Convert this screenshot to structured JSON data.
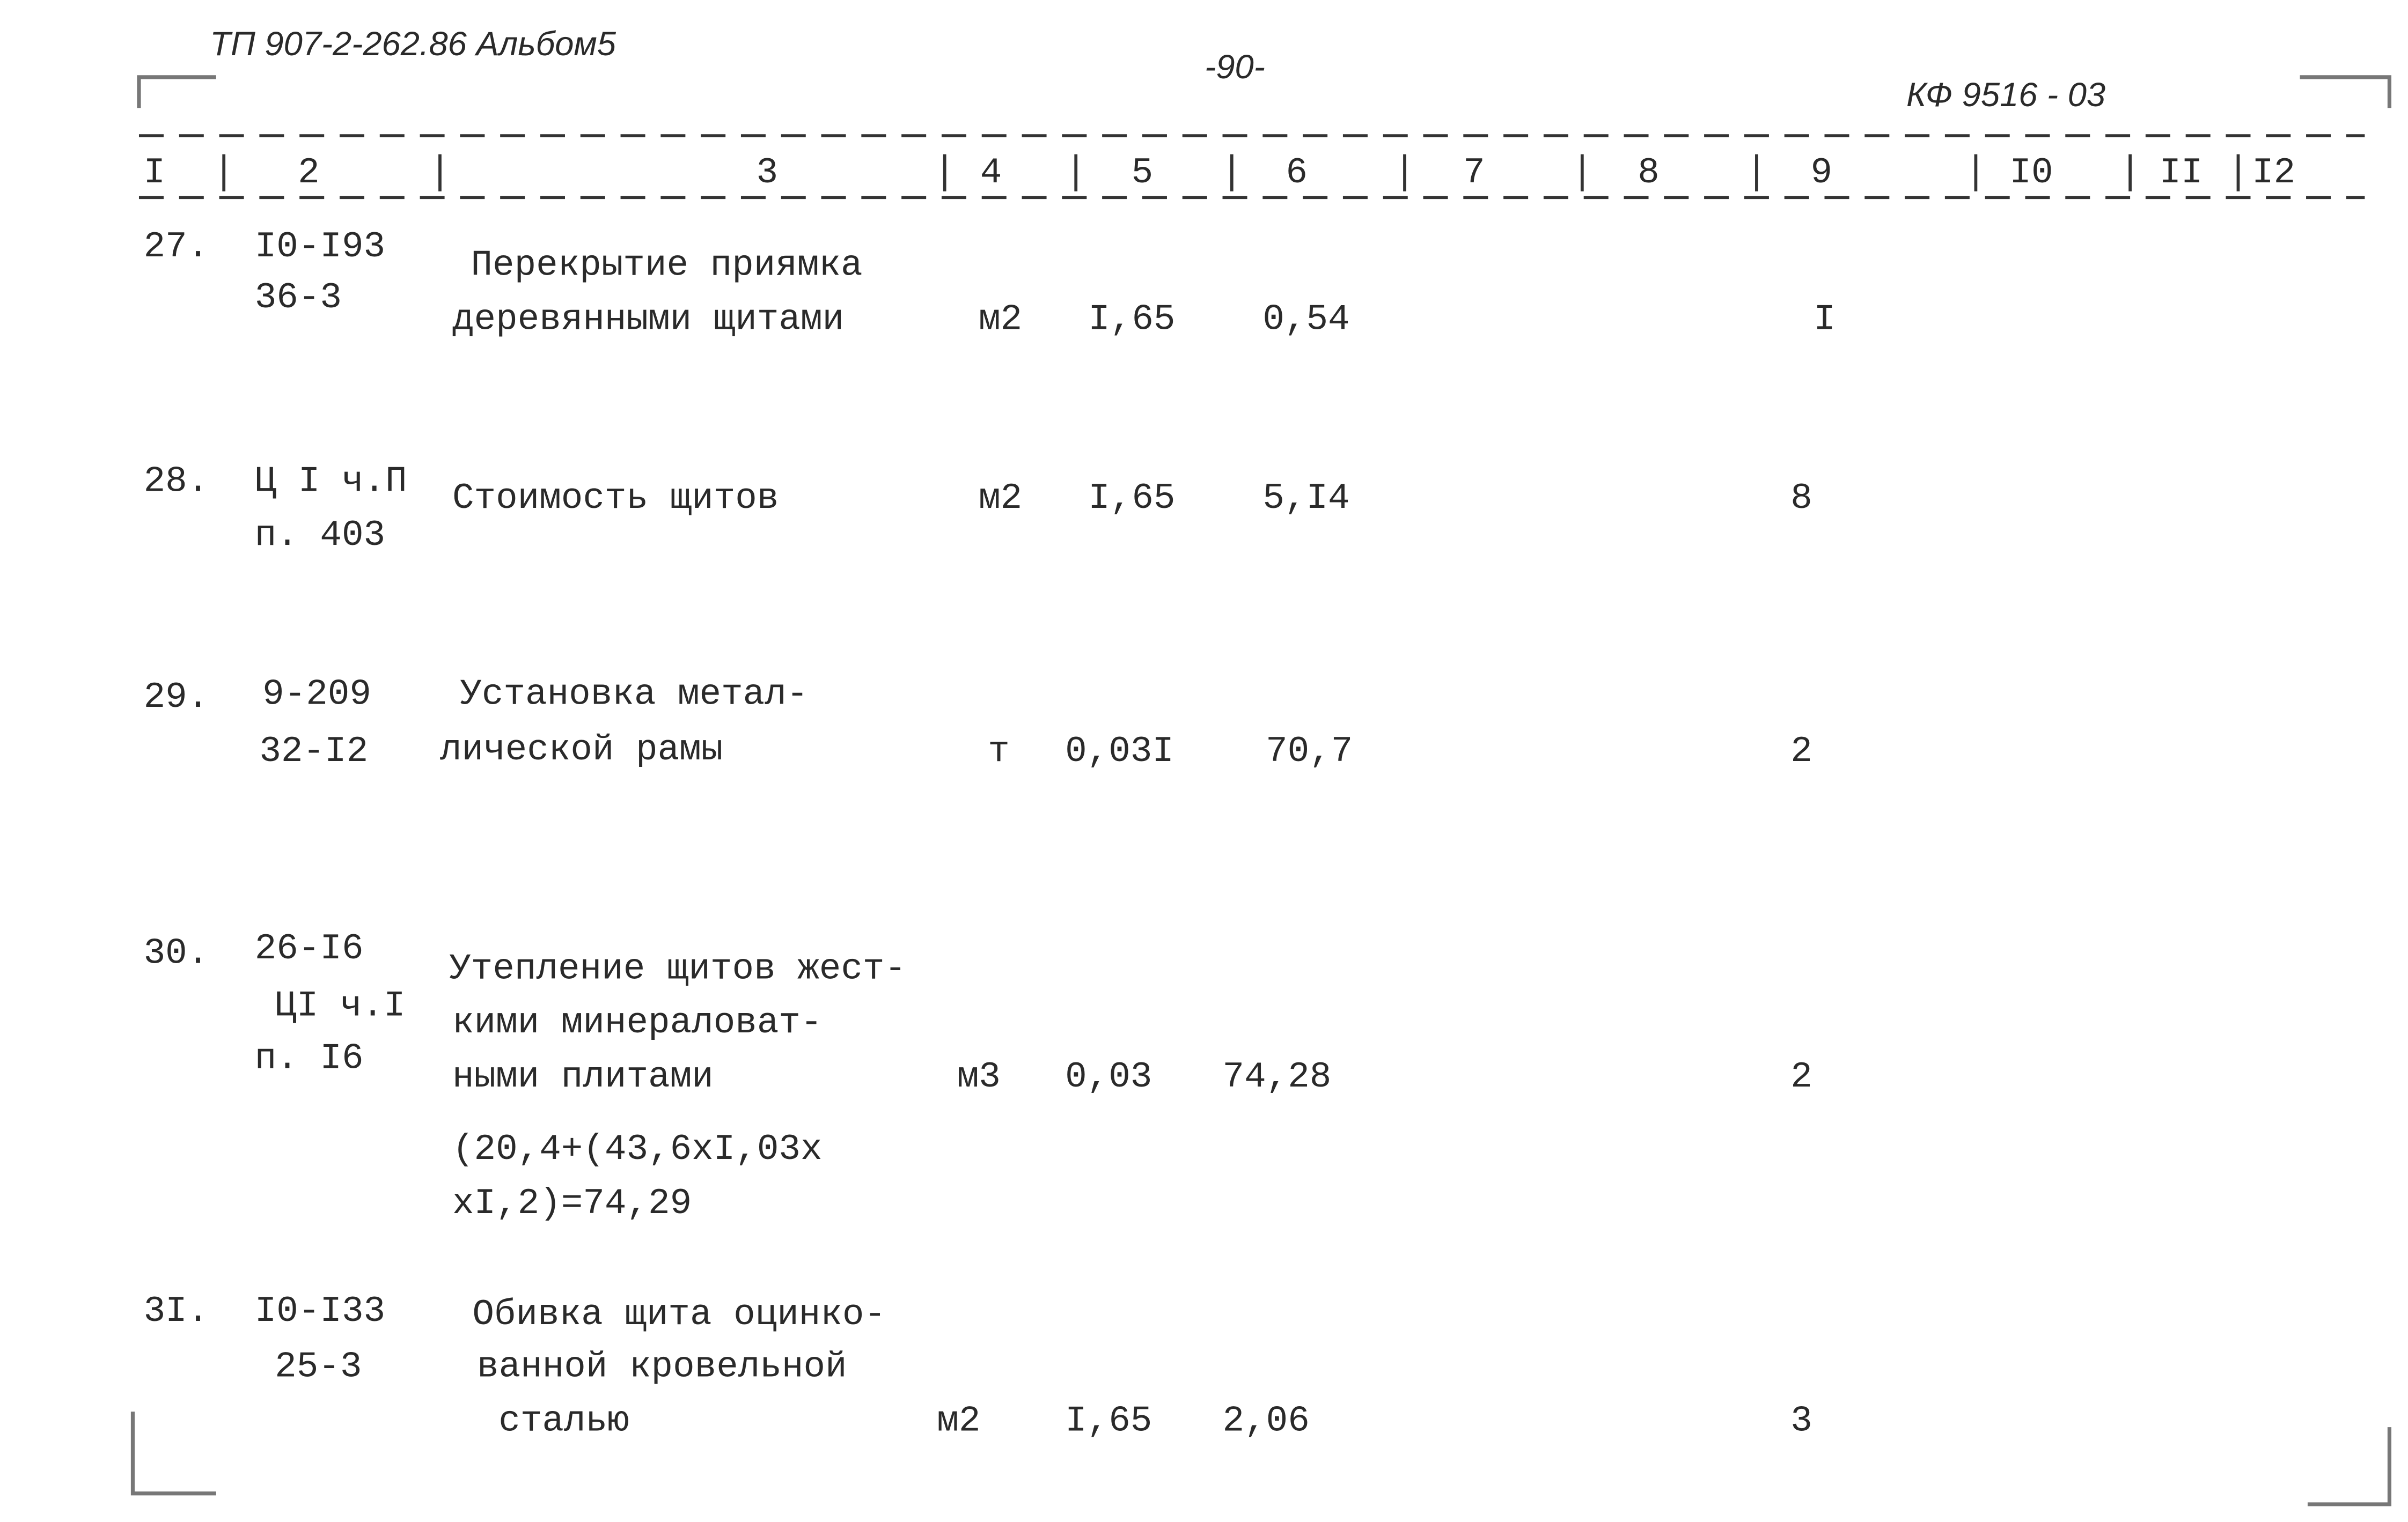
{
  "header": {
    "document_code": "ТП 907-2-262.86 Альбом5",
    "page_number": "-90-",
    "stamp": "КФ 9516 - 03"
  },
  "table": {
    "columns": [
      "I",
      "2",
      "3",
      "4",
      "5",
      "6",
      "7",
      "8",
      "9",
      "I0",
      "II",
      "I2"
    ],
    "rows": [
      {
        "number": "27.",
        "code": [
          "I0-I93",
          "36-3"
        ],
        "description": [
          "Перекрытие приямка",
          "деревянными щитами"
        ],
        "unit": "м2",
        "quantity": "I,65",
        "price": "0,54",
        "col9": "I"
      },
      {
        "number": "28.",
        "code": [
          "Ц I ч.П",
          "п. 403"
        ],
        "description": [
          "Стоимость щитов"
        ],
        "unit": "м2",
        "quantity": "I,65",
        "price": "5,I4",
        "col9": "8"
      },
      {
        "number": "29.",
        "code": [
          "9-209",
          "32-I2"
        ],
        "description": [
          "Установка метал-",
          "лической рамы"
        ],
        "unit": "т",
        "quantity": "0,03I",
        "price": "70,7",
        "col9": "2"
      },
      {
        "number": "30.",
        "code": [
          "26-I6",
          "ЦI ч.I",
          "п. I6"
        ],
        "description": [
          "Утепление щитов жест-",
          "кими минераловат-",
          "ными плитами"
        ],
        "calculation": [
          "(20,4+(43,6xI,03x",
          "xI,2)=74,29"
        ],
        "unit": "м3",
        "quantity": "0,03",
        "price": "74,28",
        "col9": "2"
      },
      {
        "number": "3I.",
        "code": [
          "I0-I33",
          "25-3"
        ],
        "description": [
          "Обивка щита оцинко-",
          "ванной кровельной",
          "сталью"
        ],
        "unit": "м2",
        "quantity": "I,65",
        "price": "2,06",
        "col9": "3"
      }
    ]
  }
}
